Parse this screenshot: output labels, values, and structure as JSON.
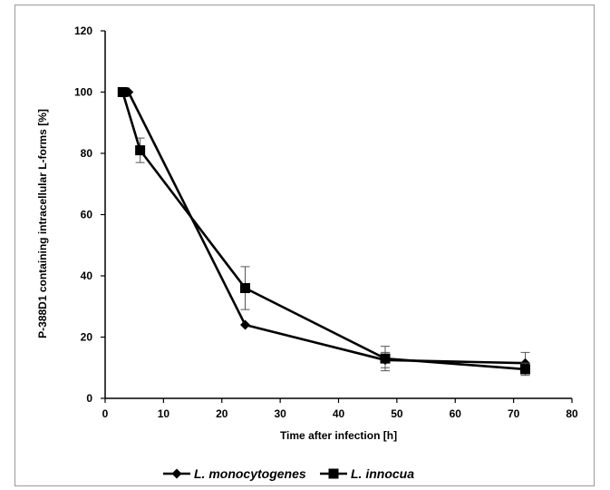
{
  "chart_data": {
    "type": "line",
    "xlabel": "Time after infection [h]",
    "ylabel": "P-388D1 containing intracellular L-forms [%]",
    "xlim": [
      0,
      80
    ],
    "ylim": [
      0,
      120
    ],
    "xticks": [
      0,
      10,
      20,
      30,
      40,
      50,
      60,
      70,
      80
    ],
    "yticks": [
      0,
      20,
      40,
      60,
      80,
      100,
      120
    ],
    "grid": false,
    "legend_position": "bottom",
    "series": [
      {
        "name": "L. monocytogenes",
        "marker": "diamond",
        "color": "#000000",
        "x": [
          3,
          4,
          24,
          48,
          72
        ],
        "y": [
          100,
          100,
          24,
          12.5,
          11.5
        ],
        "error": [
          0,
          0,
          0,
          2.5,
          3.5
        ]
      },
      {
        "name": "L. innocua",
        "marker": "square",
        "color": "#000000",
        "x": [
          3,
          6,
          24,
          48,
          72
        ],
        "y": [
          100,
          81,
          36,
          13,
          9.5
        ],
        "error": [
          0,
          4,
          7,
          4,
          2
        ]
      }
    ]
  }
}
